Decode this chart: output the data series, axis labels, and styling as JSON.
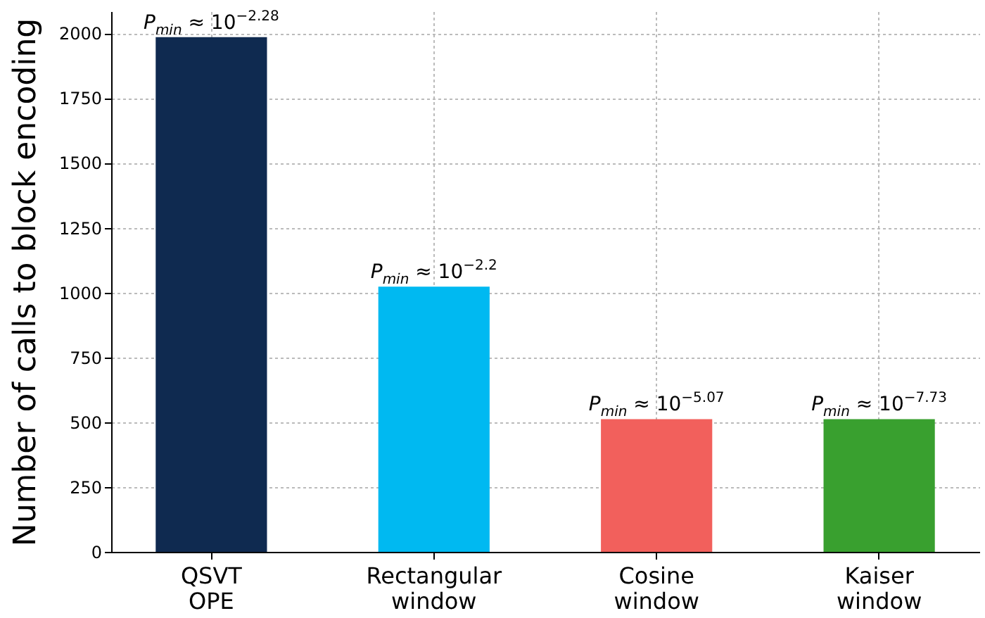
{
  "chart_data": {
    "type": "bar",
    "ylabel": "Number of calls to block encoding",
    "categories": [
      "QSVT\nOPE",
      "Rectangular\nwindow",
      "Cosine\nwindow",
      "Kaiser\nwindow"
    ],
    "values": [
      1985,
      1023,
      512,
      512
    ],
    "colors": [
      "#0f2a50",
      "#00b9f1",
      "#f2605c",
      "#39a02f"
    ],
    "ylim": [
      0,
      2085
    ],
    "yticks": [
      0,
      250,
      500,
      750,
      1000,
      1250,
      1500,
      1750,
      2000
    ],
    "grid": true,
    "annotations": [
      {
        "text": "P$_{min}$ ≈ 10$^{−2.28}$",
        "x": "QSVT\nOPE",
        "y": 1985
      },
      {
        "text": "P$_{min}$ ≈ 10$^{−2.2}$",
        "x": "Rectangular\nwindow",
        "y": 1023
      },
      {
        "text": "P$_{min}$ ≈ 10$^{−5.07}$",
        "x": "Cosine\nwindow",
        "y": 512
      },
      {
        "text": "P$_{min}$ ≈ 10$^{−7.73}$",
        "x": "Kaiser\nwindow",
        "y": 512
      }
    ]
  }
}
